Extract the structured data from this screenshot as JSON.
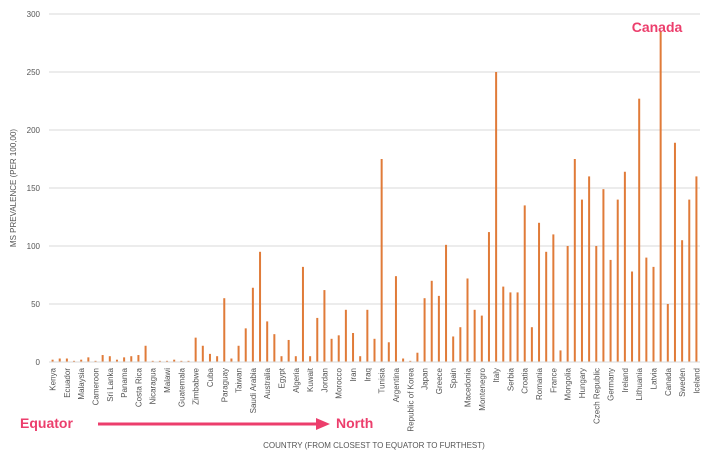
{
  "chart_data": {
    "type": "bar",
    "title": "",
    "xlabel": "COUNTRY (FROM CLOSEST TO EQUATOR TO FURTHEST)",
    "ylabel": "MS PREVALENCE (PER 100,00)",
    "ylim": [
      0,
      300
    ],
    "yticks": [
      0,
      50,
      100,
      150,
      200,
      250,
      300
    ],
    "grid": true,
    "bar_color": "#e07b39",
    "annotations": {
      "peak_label": "Canada",
      "start_label": "Equator",
      "end_label": "North",
      "color": "#ec3e6c"
    },
    "labeled_categories": [
      "Kenya",
      "Ecuador",
      "Malaysia",
      "Cameroon",
      "Sri Lanka",
      "Panama",
      "Costa Rica",
      "Nicaragua",
      "Malawi",
      "Guatemala",
      "Zimbabwe",
      "Cuba",
      "Paraguay",
      "Taiwan",
      "Saudi Arabia",
      "Australia",
      "Egypt",
      "Algeria",
      "Kuwait",
      "Jordan",
      "Morocco",
      "Iran",
      "Iraq",
      "Tunisia",
      "Argentina",
      "Republic of Korea",
      "Japan",
      "Greece",
      "Spain",
      "Macedonia",
      "Montenegro",
      "Italy",
      "Serbia",
      "Croatia",
      "Romania",
      "France",
      "Mongolia",
      "Hungary",
      "Czech Republic",
      "Germany",
      "Ireland",
      "Lithuania",
      "Latvia",
      "Canada",
      "Sweden",
      "Iceland"
    ],
    "values": [
      2,
      3,
      3,
      1,
      2,
      4,
      1,
      6,
      5,
      2,
      4,
      5,
      6,
      14,
      1,
      1,
      1,
      2,
      1,
      1,
      21,
      14,
      7,
      5,
      55,
      3,
      14,
      29,
      64,
      95,
      35,
      24,
      5,
      19,
      5,
      82,
      5,
      38,
      62,
      20,
      23,
      45,
      25,
      5,
      45,
      20,
      175,
      17,
      74,
      3,
      1,
      8,
      55,
      70,
      57,
      101,
      22,
      30,
      72,
      45,
      40,
      112,
      250,
      65,
      60,
      60,
      135,
      30,
      120,
      95,
      110,
      10,
      100,
      175,
      140,
      160,
      100,
      149,
      88,
      140,
      164,
      78,
      227,
      90,
      82,
      285,
      50,
      189,
      105,
      140,
      160
    ]
  }
}
